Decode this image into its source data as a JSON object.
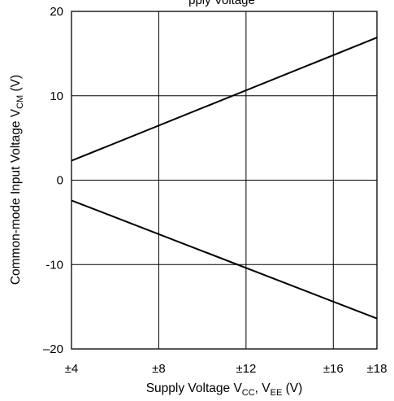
{
  "chart_data": {
    "type": "line",
    "title": "pply Voltage",
    "xlabel": {
      "main": "Supply Voltage  V",
      "sub1": "CC",
      "sep": ", V",
      "sub2": "EE",
      "unit": "  (V)"
    },
    "ylabel": {
      "main": "Common-mode Input Voltage  V",
      "sub": "CM",
      "unit": "  (V)"
    },
    "x_ticks": [
      4,
      8,
      12,
      16,
      18
    ],
    "x_tick_labels": [
      "±4",
      "±8",
      "±12",
      "±16",
      "±18"
    ],
    "y_ticks": [
      20,
      10,
      0,
      -10,
      -20
    ],
    "y_tick_labels": [
      "20",
      "10",
      "0",
      "-10",
      "–20"
    ],
    "xlim": [
      4,
      18
    ],
    "ylim": [
      -20,
      20
    ],
    "grid": true,
    "series": [
      {
        "x": [
          4,
          18
        ],
        "y": [
          2.3,
          16.9
        ]
      },
      {
        "x": [
          4,
          18
        ],
        "y": [
          -2.4,
          -16.4
        ]
      }
    ]
  }
}
